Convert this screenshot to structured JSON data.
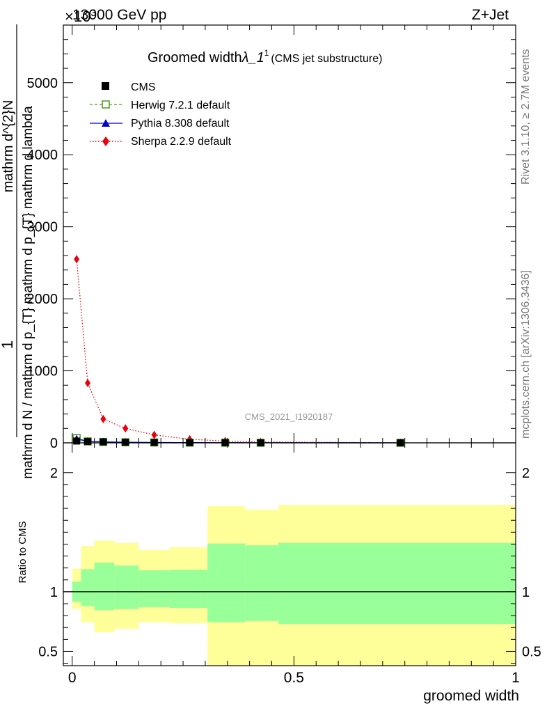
{
  "header": {
    "energy": "13000 GeV pp",
    "process": "Z+Jet",
    "multiplier": "×10",
    "multiplier_exp": "3"
  },
  "title": {
    "main": "Groomed width",
    "symbol": "λ_1",
    "sup": "1",
    "sub": "(CMS jet substructure)"
  },
  "side_labels": {
    "rivet": "Rivet 3.1.10, ≥ 2.7M events",
    "mcplots": "mcplots.cern.ch [arXiv:1306.3436]"
  },
  "watermark": "CMS_2021_I1920187",
  "y_label_main": {
    "one": "1",
    "numerator": "mathrm d^{2}N",
    "denominator": "mathrm d N / mathrm d p_{T} mathrm d p_{T} mathrm d lambda"
  },
  "y_label_ratio": "Ratio to CMS",
  "x_label": "groomed width",
  "legend": [
    {
      "label": "CMS",
      "color": "#000000"
    },
    {
      "label": "Herwig 7.2.1 default",
      "color": "#4a9a1a"
    },
    {
      "label": "Pythia 8.308 default",
      "color": "#0000cc"
    },
    {
      "label": "Sherpa 2.2.9 default",
      "color": "#e8000b"
    }
  ],
  "chart_data": [
    {
      "type": "line",
      "title": "Groomed width λ_1^1 (CMS jet substructure)",
      "xlabel": "groomed width",
      "ylabel": "1/(mathrm d N / mathrm d p_T mathrm d p_T mathrm d lambda) mathrm d^2N/(mathrm d p_T mathrm d lambda)",
      "xlim": [
        -0.02,
        1.0
      ],
      "ylim": [
        0,
        5800
      ],
      "y_multiplier": "×10^3",
      "y_ticks": [
        0,
        1000,
        2000,
        3000,
        4000,
        5000
      ],
      "y_tick_labels": [
        "0",
        "1000",
        "2000",
        "3000",
        "4000",
        "5000"
      ],
      "series": [
        {
          "name": "CMS",
          "x": [
            0.01,
            0.035,
            0.07,
            0.12,
            0.185,
            0.265,
            0.345,
            0.425,
            0.74
          ],
          "y": [
            25,
            18,
            13,
            8,
            5,
            3,
            2,
            1,
            0.3
          ]
        },
        {
          "name": "Herwig 7.2.1 default",
          "x": [
            0.01,
            0.035,
            0.07,
            0.12,
            0.185,
            0.265,
            0.345,
            0.425,
            0.74
          ],
          "y": [
            65,
            20,
            13,
            8,
            5,
            3,
            2,
            1,
            0.3
          ]
        },
        {
          "name": "Pythia 8.308 default",
          "x": [
            0.01,
            0.035,
            0.07,
            0.12,
            0.185,
            0.265,
            0.345,
            0.425,
            0.74
          ],
          "y": [
            55,
            20,
            13,
            8,
            5,
            3,
            2,
            1,
            0.3
          ]
        },
        {
          "name": "Sherpa 2.2.9 default",
          "x": [
            0.01,
            0.035,
            0.07,
            0.12,
            0.185,
            0.265,
            0.345,
            0.425,
            0.74
          ],
          "y": [
            2550,
            830,
            330,
            200,
            110,
            50,
            25,
            12,
            2
          ]
        }
      ]
    },
    {
      "type": "area",
      "ylabel": "Ratio to CMS",
      "xlabel": "groomed width",
      "xlim": [
        -0.02,
        1.0
      ],
      "ylim": [
        0.38,
        2.25
      ],
      "y_ticks": [
        0.5,
        1,
        2
      ],
      "y_tick_labels": [
        "0.5",
        "1",
        "2"
      ],
      "x_ticks": [
        0,
        0.5,
        1
      ],
      "x_tick_labels": [
        "0",
        "0.5",
        "1"
      ],
      "bin_edges": [
        0,
        0.02,
        0.05,
        0.095,
        0.15,
        0.22,
        0.305,
        0.39,
        0.465,
        1.0
      ],
      "stat_band": {
        "lo": [
          0.915,
          0.88,
          0.845,
          0.855,
          0.87,
          0.865,
          0.745,
          0.755,
          0.73
        ],
        "hi": [
          1.085,
          1.19,
          1.245,
          1.22,
          1.18,
          1.185,
          1.405,
          1.39,
          1.41
        ]
      },
      "total_band": {
        "lo": [
          0.855,
          0.745,
          0.66,
          0.69,
          0.745,
          0.735,
          0.0,
          0.0,
          0.0
        ],
        "hi": [
          1.195,
          1.385,
          1.43,
          1.41,
          1.35,
          1.375,
          1.72,
          1.69,
          1.73
        ]
      },
      "reference_line": 1
    }
  ],
  "colors": {
    "stat_band": "#99ff99",
    "total_band": "#ffff99"
  }
}
